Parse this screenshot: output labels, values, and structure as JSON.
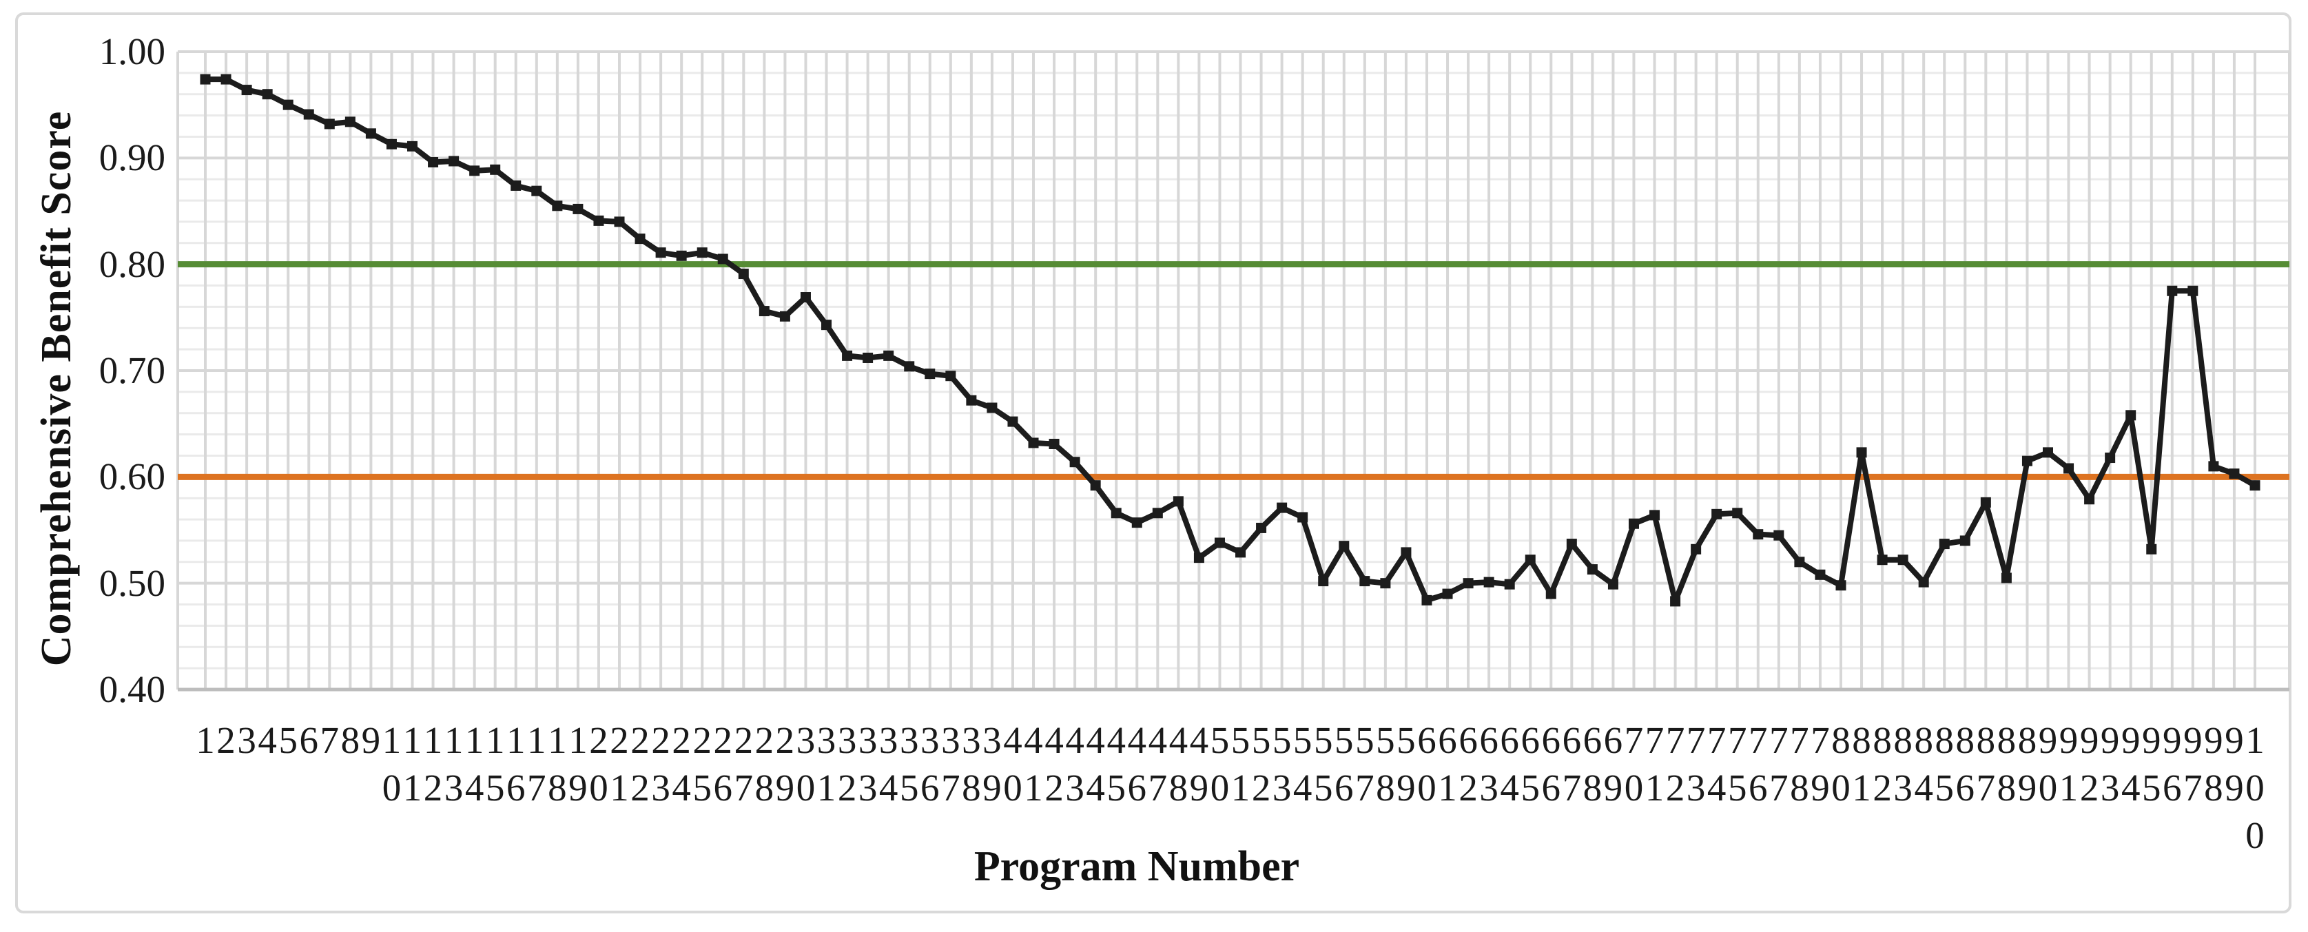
{
  "chart": {
    "y_axis_title": "Comprehensive Benefit Score",
    "x_axis_title": "Program Number"
  },
  "chart_data": {
    "type": "line",
    "title": "",
    "xlabel": "Program Number",
    "ylabel": "Comprehensive Benefit Score",
    "x": [
      1,
      2,
      3,
      4,
      5,
      6,
      7,
      8,
      9,
      10,
      11,
      12,
      13,
      14,
      15,
      16,
      17,
      18,
      19,
      20,
      21,
      22,
      23,
      24,
      25,
      26,
      27,
      28,
      29,
      30,
      31,
      32,
      33,
      34,
      35,
      36,
      37,
      38,
      39,
      40,
      41,
      42,
      43,
      44,
      45,
      46,
      47,
      48,
      49,
      50,
      51,
      52,
      53,
      54,
      55,
      56,
      57,
      58,
      59,
      60,
      61,
      62,
      63,
      64,
      65,
      66,
      67,
      68,
      69,
      70,
      71,
      72,
      73,
      74,
      75,
      76,
      77,
      78,
      79,
      80,
      81,
      82,
      83,
      84,
      85,
      86,
      87,
      88,
      89,
      90,
      91,
      92,
      93,
      94,
      95,
      96,
      97,
      98,
      99,
      100
    ],
    "series": [
      {
        "name": "Comprehensive Benefit Score",
        "color": "#1c1c1c",
        "marker": "square",
        "values": [
          0.974,
          0.974,
          0.964,
          0.96,
          0.95,
          0.941,
          0.932,
          0.934,
          0.923,
          0.913,
          0.911,
          0.896,
          0.897,
          0.888,
          0.889,
          0.874,
          0.869,
          0.855,
          0.852,
          0.841,
          0.84,
          0.824,
          0.811,
          0.808,
          0.811,
          0.805,
          0.791,
          0.756,
          0.751,
          0.769,
          0.743,
          0.714,
          0.712,
          0.714,
          0.704,
          0.697,
          0.695,
          0.672,
          0.665,
          0.652,
          0.632,
          0.631,
          0.614,
          0.592,
          0.566,
          0.557,
          0.566,
          0.577,
          0.524,
          0.538,
          0.529,
          0.552,
          0.571,
          0.562,
          0.502,
          0.535,
          0.502,
          0.5,
          0.529,
          0.484,
          0.49,
          0.5,
          0.501,
          0.499,
          0.522,
          0.49,
          0.537,
          0.513,
          0.499,
          0.556,
          0.564,
          0.483,
          0.532,
          0.565,
          0.566,
          0.546,
          0.545,
          0.52,
          0.508,
          0.498,
          0.623,
          0.522,
          0.522,
          0.501,
          0.537,
          0.54,
          0.576,
          0.505,
          0.615,
          0.623,
          0.608,
          0.579,
          0.618,
          0.658,
          0.532,
          0.775,
          0.775,
          0.61,
          0.603,
          0.592
        ]
      }
    ],
    "reference_lines": [
      {
        "value": 0.8,
        "color": "#568c35"
      },
      {
        "value": 0.6,
        "color": "#dd7321"
      }
    ],
    "ylim": [
      0.4,
      1.0
    ],
    "y_major_step": 0.1,
    "y_minor_step": 0.02,
    "y_tick_labels": [
      "1.00",
      "0.90",
      "0.80",
      "0.70",
      "0.60",
      "0.50",
      "0.40"
    ],
    "grid": "major-and-minor",
    "legend": "none",
    "colors": {
      "series": "#1c1c1c",
      "upper_benchmark": "#568c35",
      "lower_benchmark": "#dd7321",
      "major_grid": "#d7d7d7",
      "minor_grid": "#eaeaea",
      "axis_line": "#bdbdbd",
      "chart_border": "#d9d9d9"
    }
  }
}
